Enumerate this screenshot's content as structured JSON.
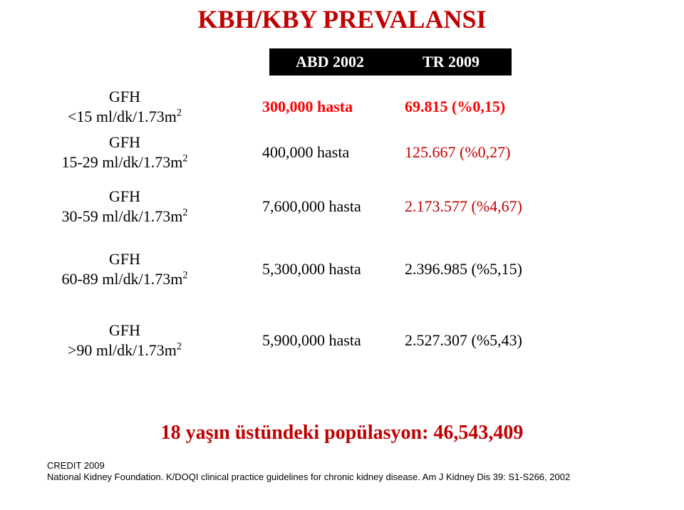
{
  "title": "KBH/KBY PREVALANSI",
  "headers": {
    "abd": "ABD 2002",
    "tr": "TR 2009"
  },
  "rows": [
    {
      "top_gfh": 120,
      "top_data": 131,
      "gfh_line1": "GFH",
      "gfh_prefix": "<15 ml/dk/1.73m",
      "abd": "300,000 hasta",
      "tr": "69.815 (%0,15)",
      "abd_style": "red-bold",
      "tr_style": "red-bold"
    },
    {
      "top_gfh": 184,
      "top_data": 195,
      "gfh_line1": "GFH",
      "gfh_prefix": "15-29 ml/dk/1.73m",
      "abd": "400,000 hasta",
      "tr": "125.667 (%0,27)",
      "abd_style": "",
      "tr_style": "red-text"
    },
    {
      "top_gfh": 260,
      "top_data": 271,
      "gfh_line1": "GFH",
      "gfh_prefix": "30-59 ml/dk/1.73m",
      "abd": "7,600,000 hasta",
      "tr": "2.173.577 (%4,67)",
      "abd_style": "",
      "tr_style": "red-text"
    },
    {
      "top_gfh": 348,
      "top_data": 359,
      "gfh_line1": "GFH",
      "gfh_prefix": "60-89 ml/dk/1.73m",
      "abd": "5,300,000 hasta",
      "tr": "2.396.985 (%5,15)",
      "abd_style": "",
      "tr_style": ""
    },
    {
      "top_gfh": 448,
      "top_data": 459,
      "gfh_line1": "GFH",
      "gfh_prefix": ">90 ml/dk/1.73m",
      "abd": "5,900,000 hasta",
      "tr": "2.527.307 (%5,43)",
      "abd_style": "",
      "tr_style": ""
    }
  ],
  "population": "18 yaşın üstündeki popülasyon: 46,543,409",
  "cite1": "CREDIT 2009",
  "cite2": "National Kidney Foundation. K/DOQI clinical practice guidelines for chronic kidney disease. Am J Kidney Dis 39: S1-S266, 2002",
  "colors": {
    "title": "#c00000",
    "population": "#c00000",
    "header_bg": "#000000",
    "header_fg": "#ffffff",
    "red_text": "#c00000",
    "red_bold": "#ff0000",
    "body_bg": "#ffffff"
  },
  "fonts": {
    "title_size": 36,
    "header_size": 22,
    "body_size": 22,
    "population_size": 28,
    "cite_size": 13
  }
}
